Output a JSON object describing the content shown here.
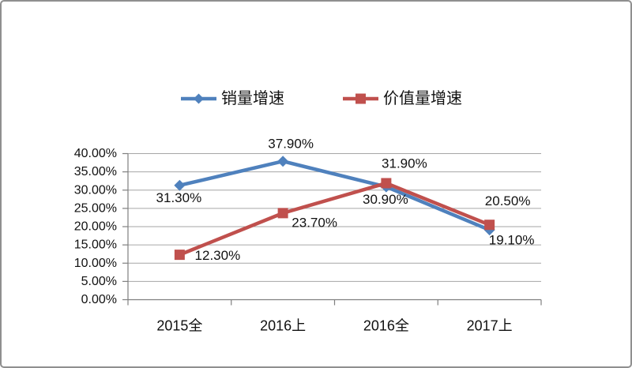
{
  "page": {
    "background": "#ffffff",
    "border_color": "#8f8f8f"
  },
  "legend": {
    "position": "top",
    "items": [
      {
        "label": "销量增速",
        "marker": "diamond",
        "color": "#4f81bd"
      },
      {
        "label": "价值量增速",
        "marker": "square",
        "color": "#c0504d"
      }
    ]
  },
  "chart_data": {
    "type": "line",
    "title": "",
    "xlabel": "",
    "ylabel": "",
    "categories": [
      "2015全",
      "2016上",
      "2016全",
      "2017上"
    ],
    "series": [
      {
        "name": "销量增速",
        "color": "#4f81bd",
        "marker": "diamond",
        "values": [
          31.3,
          37.9,
          30.9,
          19.1
        ],
        "point_labels": [
          "31.30%",
          "37.90%",
          "30.90%",
          "19.10%"
        ]
      },
      {
        "name": "价值量增速",
        "color": "#c0504d",
        "marker": "square",
        "values": [
          12.3,
          23.7,
          31.9,
          20.5
        ],
        "point_labels": [
          "12.30%",
          "23.70%",
          "31.90%",
          "20.50%"
        ]
      }
    ],
    "ylim": [
      0,
      40
    ],
    "ytick_step": 5,
    "ytick_labels": [
      "0.00%",
      "5.00%",
      "10.00%",
      "15.00%",
      "20.00%",
      "25.00%",
      "30.00%",
      "35.00%",
      "40.00%"
    ],
    "grid": true,
    "gridline_color": "#a6a6a6",
    "axis_color": "#808080",
    "legend_position": "top"
  }
}
